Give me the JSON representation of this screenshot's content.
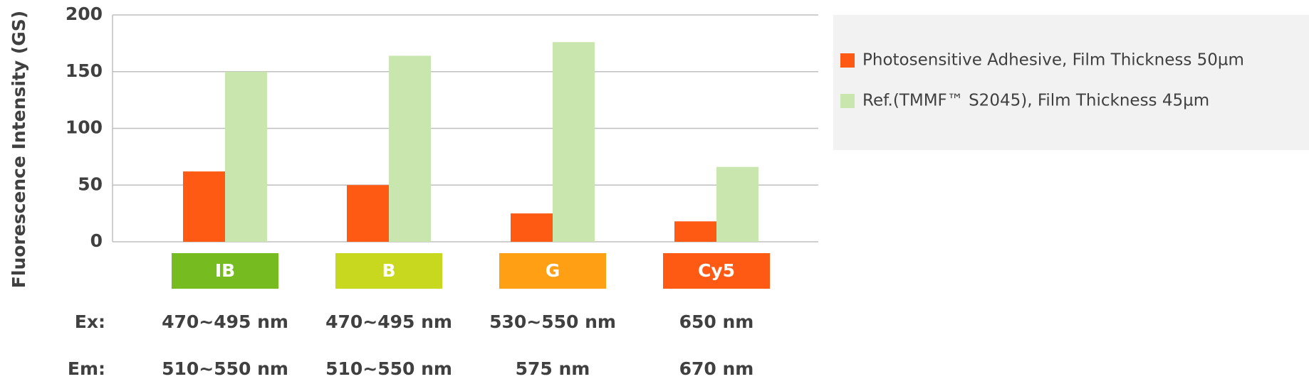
{
  "chart_data": {
    "type": "bar",
    "y_label": "Fluorescence Intensity (GS)",
    "categories": [
      "IB",
      "B",
      "G",
      "Cy5"
    ],
    "category_colors": [
      "#76bc21",
      "#c8d81e",
      "#ff9f14",
      "#ff5a14"
    ],
    "excitation": {
      "label": "Ex:",
      "values": [
        "470~495 nm",
        "470~495 nm",
        "530~550 nm",
        "650 nm"
      ]
    },
    "emission": {
      "label": "Em:",
      "values": [
        "510~550 nm",
        "510~550 nm",
        "575 nm",
        "670 nm"
      ]
    },
    "series": [
      {
        "name": "Photosensitive Adhesive, Film Thickness 50µm",
        "color": "#ff5a14",
        "values": [
          62,
          50,
          25,
          18
        ]
      },
      {
        "name": "Ref.(TMMF™ S2045), Film Thickness 45µm",
        "color": "#c8e6ae",
        "values": [
          150,
          164,
          176,
          66
        ]
      }
    ],
    "ylim": [
      0,
      200
    ],
    "yticks": [
      0,
      50,
      100,
      150,
      200
    ],
    "grid": true
  }
}
